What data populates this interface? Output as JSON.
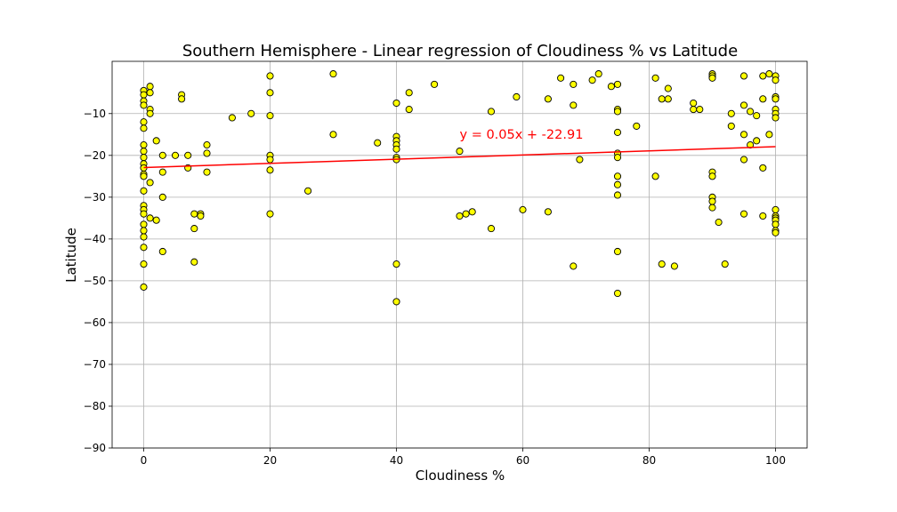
{
  "chart_data": {
    "type": "scatter",
    "title": "Southern Hemisphere - Linear regression of Cloudiness % vs Latitude",
    "xlabel": "Cloudiness %",
    "ylabel": "Latitude",
    "xlim": [
      -5,
      105
    ],
    "ylim": [
      -90,
      2.5
    ],
    "xticks": [
      0,
      20,
      40,
      60,
      80,
      100
    ],
    "yticks": [
      -90,
      -80,
      -70,
      -60,
      -50,
      -40,
      -30,
      -20,
      -10
    ],
    "xtick_labels": [
      "0",
      "20",
      "40",
      "60",
      "80",
      "100"
    ],
    "ytick_labels": [
      "−90",
      "−80",
      "−70",
      "−60",
      "−50",
      "−40",
      "−30",
      "−20",
      "−10"
    ],
    "grid": true,
    "colors": {
      "points": "#ffff00",
      "point_edge": "#000000",
      "regression": "#ff0000"
    },
    "regression": {
      "slope": 0.05,
      "intercept": -22.91,
      "x_range": [
        0,
        100
      ]
    },
    "annotation": {
      "text": "y = 0.05x + -22.91",
      "x": 50,
      "y": -16,
      "color": "#ff0000"
    },
    "points": [
      [
        0,
        -4.5
      ],
      [
        0,
        -5.5
      ],
      [
        0,
        -7
      ],
      [
        0,
        -8
      ],
      [
        0,
        -12
      ],
      [
        0,
        -13.5
      ],
      [
        0,
        -17.5
      ],
      [
        0,
        -19
      ],
      [
        0,
        -20.5
      ],
      [
        0,
        -22
      ],
      [
        0,
        -23
      ],
      [
        0,
        -24.5
      ],
      [
        0,
        -25
      ],
      [
        0,
        -28.5
      ],
      [
        0,
        -32
      ],
      [
        0,
        -33
      ],
      [
        0,
        -34
      ],
      [
        0,
        -36.5
      ],
      [
        0,
        -38
      ],
      [
        0,
        -39.5
      ],
      [
        0,
        -42
      ],
      [
        0,
        -46
      ],
      [
        0,
        -51.5
      ],
      [
        1,
        -3.5
      ],
      [
        1,
        -5
      ],
      [
        1,
        -9
      ],
      [
        1,
        -10
      ],
      [
        1,
        -26.5
      ],
      [
        1,
        -35
      ],
      [
        2,
        -16.5
      ],
      [
        2,
        -35.5
      ],
      [
        3,
        -20
      ],
      [
        3,
        -24
      ],
      [
        3,
        -30
      ],
      [
        3,
        -43
      ],
      [
        5,
        -20
      ],
      [
        6,
        -5.5
      ],
      [
        6,
        -6.5
      ],
      [
        7,
        -20
      ],
      [
        7,
        -23
      ],
      [
        8,
        -34
      ],
      [
        8,
        -37.5
      ],
      [
        8,
        -45.5
      ],
      [
        9,
        -34
      ],
      [
        9,
        -34.5
      ],
      [
        10,
        -17.5
      ],
      [
        10,
        -19.5
      ],
      [
        10,
        -24
      ],
      [
        14,
        -11
      ],
      [
        17,
        -10
      ],
      [
        20,
        -1
      ],
      [
        20,
        -5
      ],
      [
        20,
        -10.5
      ],
      [
        20,
        -20
      ],
      [
        20,
        -21
      ],
      [
        20,
        -23.5
      ],
      [
        20,
        -34
      ],
      [
        26,
        -28.5
      ],
      [
        30,
        -0.5
      ],
      [
        30,
        -15
      ],
      [
        37,
        -17
      ],
      [
        40,
        -7.5
      ],
      [
        40,
        -15.5
      ],
      [
        40,
        -16.5
      ],
      [
        40,
        -17.5
      ],
      [
        40,
        -18.5
      ],
      [
        40,
        -20.5
      ],
      [
        40,
        -21
      ],
      [
        40,
        -46
      ],
      [
        40,
        -55
      ],
      [
        42,
        -5
      ],
      [
        42,
        -9
      ],
      [
        46,
        -3
      ],
      [
        50,
        -19
      ],
      [
        50,
        -34.5
      ],
      [
        51,
        -34
      ],
      [
        52,
        -33.5
      ],
      [
        55,
        -9.5
      ],
      [
        55,
        -37.5
      ],
      [
        59,
        -6
      ],
      [
        60,
        -33
      ],
      [
        64,
        -6.5
      ],
      [
        64,
        -33.5
      ],
      [
        66,
        -1.5
      ],
      [
        68,
        -3
      ],
      [
        68,
        -8
      ],
      [
        68,
        -46.5
      ],
      [
        69,
        -21
      ],
      [
        71,
        -2
      ],
      [
        72,
        -0.5
      ],
      [
        74,
        -3.5
      ],
      [
        75,
        -3
      ],
      [
        75,
        -9
      ],
      [
        75,
        -9.5
      ],
      [
        75,
        -14.5
      ],
      [
        75,
        -19.5
      ],
      [
        75,
        -20.5
      ],
      [
        75,
        -25
      ],
      [
        75,
        -27
      ],
      [
        75,
        -29.5
      ],
      [
        75,
        -43
      ],
      [
        75,
        -53
      ],
      [
        78,
        -13
      ],
      [
        81,
        -1.5
      ],
      [
        81,
        -25
      ],
      [
        82,
        -6.5
      ],
      [
        82,
        -46
      ],
      [
        83,
        -4
      ],
      [
        83,
        -6.5
      ],
      [
        84,
        -46.5
      ],
      [
        87,
        -7.5
      ],
      [
        87,
        -9
      ],
      [
        88,
        -9
      ],
      [
        90,
        -0.5
      ],
      [
        90,
        -1
      ],
      [
        90,
        -1.5
      ],
      [
        90,
        -24
      ],
      [
        90,
        -25
      ],
      [
        90,
        -30
      ],
      [
        90,
        -31
      ],
      [
        90,
        -32.5
      ],
      [
        91,
        -36
      ],
      [
        92,
        -46
      ],
      [
        93,
        -10
      ],
      [
        93,
        -13
      ],
      [
        95,
        -1
      ],
      [
        95,
        -8
      ],
      [
        95,
        -15
      ],
      [
        95,
        -21
      ],
      [
        95,
        -34
      ],
      [
        96,
        -9.5
      ],
      [
        96,
        -17.5
      ],
      [
        97,
        -10.5
      ],
      [
        97,
        -16.5
      ],
      [
        98,
        -1
      ],
      [
        98,
        -6.5
      ],
      [
        98,
        -23
      ],
      [
        98,
        -34.5
      ],
      [
        99,
        -0.5
      ],
      [
        99,
        -15
      ],
      [
        100,
        -1
      ],
      [
        100,
        -2
      ],
      [
        100,
        -6
      ],
      [
        100,
        -6.5
      ],
      [
        100,
        -9
      ],
      [
        100,
        -10
      ],
      [
        100,
        -11
      ],
      [
        100,
        -33
      ],
      [
        100,
        -34.5
      ],
      [
        100,
        -35
      ],
      [
        100,
        -35.5
      ],
      [
        100,
        -36.5
      ],
      [
        100,
        -38
      ],
      [
        100,
        -38.5
      ]
    ]
  }
}
